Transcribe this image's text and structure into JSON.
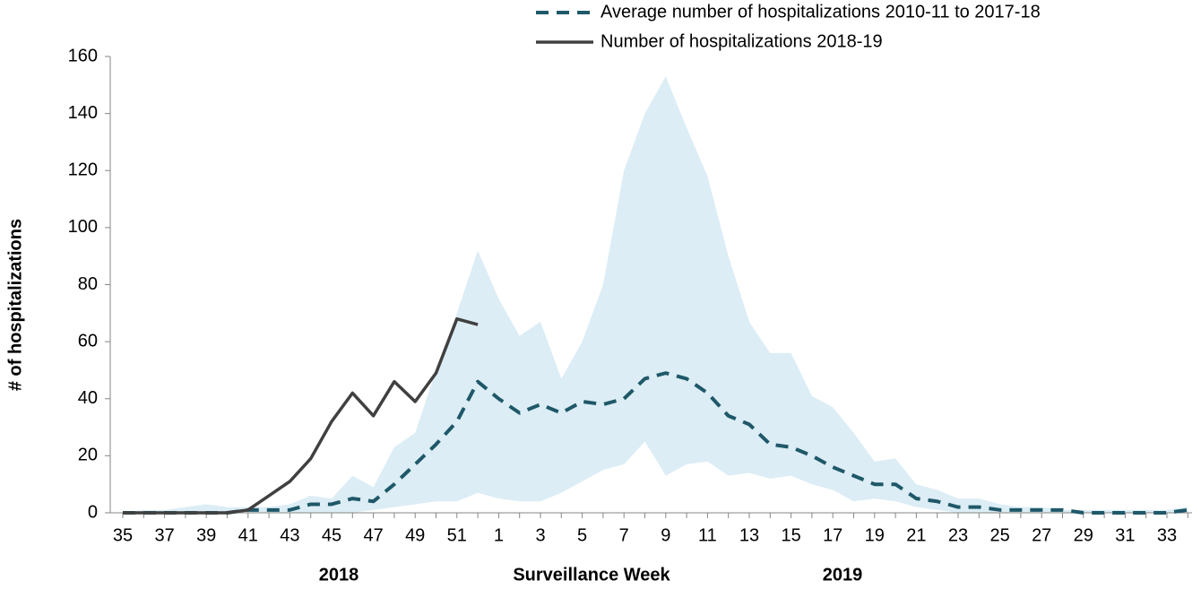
{
  "chart_data": {
    "type": "line",
    "y_label": "# of hospitalizations",
    "x_label": "Surveillance Week",
    "annotations": [
      "2018",
      "2019"
    ],
    "categories": [
      35,
      null,
      37,
      null,
      39,
      null,
      41,
      null,
      43,
      null,
      45,
      null,
      47,
      null,
      49,
      null,
      51,
      null,
      1,
      null,
      3,
      null,
      5,
      null,
      7,
      null,
      9,
      null,
      11,
      null,
      13,
      null,
      15,
      null,
      17,
      null,
      19,
      null,
      21,
      null,
      23,
      null,
      25,
      null,
      27,
      null,
      29,
      null,
      31,
      null,
      33,
      null
    ],
    "ylim": [
      0,
      160
    ],
    "yticks": [
      0,
      20,
      40,
      60,
      80,
      100,
      120,
      140,
      160
    ],
    "range": {
      "color": "#dcedf5",
      "lower": [
        0,
        0,
        0,
        0,
        0,
        0,
        0,
        0,
        0,
        0,
        0,
        0,
        1,
        2,
        3,
        4,
        4,
        7,
        5,
        4,
        4,
        7,
        11,
        15,
        17,
        25,
        13,
        17,
        18,
        13,
        14,
        12,
        13,
        10,
        8,
        4,
        5,
        4,
        2,
        1,
        0,
        0,
        0,
        0,
        0,
        0,
        0,
        0,
        0,
        0,
        0,
        0
      ],
      "upper": [
        0,
        1,
        1,
        2,
        3,
        2,
        2,
        2,
        3,
        6,
        5,
        13,
        9,
        23,
        28,
        50,
        70,
        92,
        75,
        62,
        67,
        47,
        60,
        80,
        120,
        140,
        153,
        135,
        118,
        90,
        67,
        56,
        56,
        41,
        37,
        28,
        18,
        19,
        10,
        8,
        5,
        5,
        3,
        2,
        2,
        1,
        1,
        1,
        1,
        1,
        1,
        2
      ]
    },
    "series": [
      {
        "name": "Average number of hospitalizations 2010-11 to 2017-18",
        "color": "#1f5868",
        "dash": true,
        "values": [
          0,
          0,
          0,
          0,
          0,
          0,
          1,
          1,
          1,
          3,
          3,
          5,
          4,
          10,
          17,
          24,
          32,
          46,
          40,
          35,
          38,
          35,
          39,
          38,
          40,
          47,
          49,
          47,
          42,
          34,
          31,
          24,
          23,
          20,
          16,
          13,
          10,
          10,
          5,
          4,
          2,
          2,
          1,
          1,
          1,
          1,
          0,
          0,
          0,
          0,
          0,
          1
        ]
      },
      {
        "name": "Number of hospitalizations 2018-19",
        "color": "#404040",
        "dash": false,
        "values": [
          0,
          0,
          0,
          0,
          0,
          0,
          1,
          6,
          11,
          19,
          32,
          42,
          34,
          46,
          39,
          49,
          68,
          66,
          null,
          null,
          null,
          null,
          null,
          null,
          null,
          null,
          null,
          null,
          null,
          null,
          null,
          null,
          null,
          null,
          null,
          null,
          null,
          null,
          null,
          null,
          null,
          null,
          null,
          null,
          null,
          null,
          null,
          null,
          null,
          null,
          null,
          null
        ]
      }
    ]
  }
}
